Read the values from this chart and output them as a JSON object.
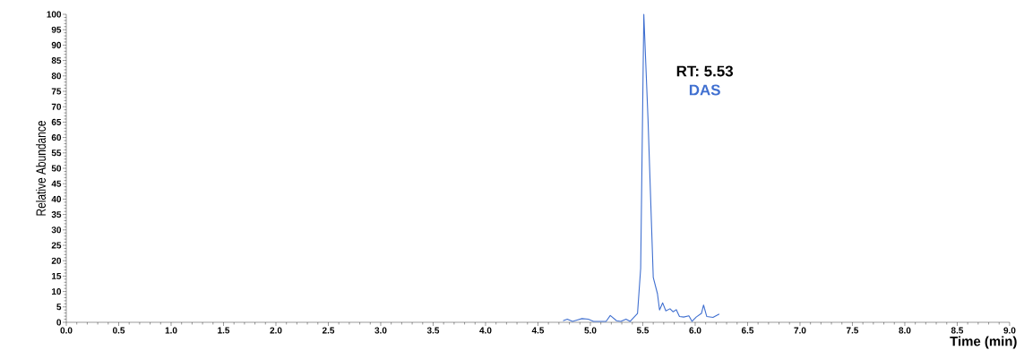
{
  "chart_data": {
    "type": "line",
    "xlabel": "Time (min)",
    "ylabel": "Relative Abundance",
    "annotations": [
      "RT: 5.53"
    ],
    "xlim": [
      0,
      9
    ],
    "xticks": [
      {
        "value": 0,
        "label": "0.0"
      },
      {
        "value": 0.5,
        "label": "0.5"
      },
      {
        "value": 1,
        "label": "1.0"
      },
      {
        "value": 1.5,
        "label": "1.5"
      },
      {
        "value": 2,
        "label": "2.0"
      },
      {
        "value": 2.5,
        "label": "2.5"
      },
      {
        "value": 3,
        "label": "3.0"
      },
      {
        "value": 3.5,
        "label": "3.5"
      },
      {
        "value": 4,
        "label": "4.0"
      },
      {
        "value": 4.5,
        "label": "4.5"
      },
      {
        "value": 5,
        "label": "5.0"
      },
      {
        "value": 5.5,
        "label": "5.5"
      },
      {
        "value": 6,
        "label": "6.0"
      },
      {
        "value": 6.5,
        "label": "6.5"
      },
      {
        "value": 7,
        "label": "7.0"
      },
      {
        "value": 7.5,
        "label": "7.5"
      },
      {
        "value": 8,
        "label": "8.0"
      },
      {
        "value": 8.5,
        "label": "8.5"
      },
      {
        "value": 9,
        "label": "9.0"
      }
    ],
    "ylim": [
      0,
      100
    ],
    "yticks": [
      0,
      5,
      10,
      15,
      20,
      25,
      30,
      35,
      40,
      45,
      50,
      55,
      60,
      65,
      70,
      75,
      80,
      85,
      90,
      95,
      100
    ],
    "grid": false,
    "legend": false,
    "marker": "none",
    "line_style": "solid",
    "series": [
      {
        "name": "DAS",
        "color": "#3f6fd0",
        "x": [
          4.74,
          4.78,
          4.83,
          4.88,
          4.92,
          4.98,
          5.03,
          5.15,
          5.19,
          5.25,
          5.29,
          5.34,
          5.38,
          5.45,
          5.48,
          5.51,
          5.55,
          5.6,
          5.64,
          5.66,
          5.69,
          5.72,
          5.76,
          5.79,
          5.82,
          5.85,
          5.89,
          5.94,
          5.97,
          6.01,
          6.06,
          6.08,
          6.11,
          6.17,
          6.23
        ],
        "values": [
          0.5,
          1.0,
          0.3,
          0.8,
          1.2,
          1.0,
          0.3,
          0.3,
          2.2,
          0.5,
          0.3,
          1.0,
          0.3,
          2.9,
          17.5,
          100,
          66,
          14.6,
          9.3,
          4.0,
          6.3,
          3.7,
          4.4,
          3.4,
          4.1,
          1.9,
          1.7,
          2.1,
          0.3,
          1.7,
          2.9,
          5.6,
          1.9,
          1.6,
          2.7
        ]
      }
    ]
  }
}
